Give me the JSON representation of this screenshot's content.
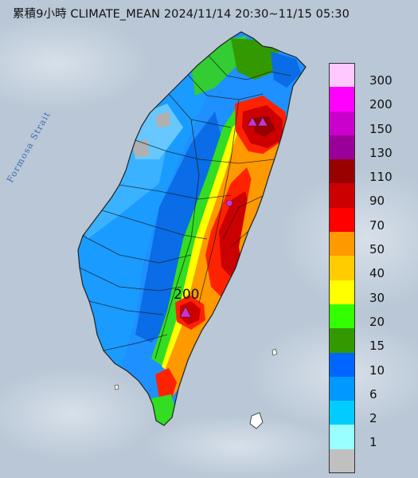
{
  "title": "累積9小時 CLIMATE_MEAN 2024/11/14 20:30~11/15 05:30",
  "strait_label": "Formosa Strait",
  "peak_label": "200",
  "legend": {
    "rows": [
      {
        "label": "300",
        "color": "#ffc8ff"
      },
      {
        "label": "200",
        "color": "#fe00fd"
      },
      {
        "label": "150",
        "color": "#cc00cc"
      },
      {
        "label": "130",
        "color": "#990099"
      },
      {
        "label": "110",
        "color": "#980000"
      },
      {
        "label": "90",
        "color": "#cc0000"
      },
      {
        "label": "70",
        "color": "#ff0000"
      },
      {
        "label": "50",
        "color": "#ff9900"
      },
      {
        "label": "40",
        "color": "#ffcc00"
      },
      {
        "label": "30",
        "color": "#ffff00"
      },
      {
        "label": "20",
        "color": "#33ff00"
      },
      {
        "label": "15",
        "color": "#339900"
      },
      {
        "label": "10",
        "color": "#0066ff"
      },
      {
        "label": "6",
        "color": "#0099ff"
      },
      {
        "label": "2",
        "color": "#00ccff"
      },
      {
        "label": "1",
        "color": "#99ffff"
      },
      {
        "label": "",
        "color": "#c0c0c0"
      }
    ]
  },
  "colors": {
    "sea": "#b9c7d6",
    "station_marker": "#cc33cc"
  }
}
